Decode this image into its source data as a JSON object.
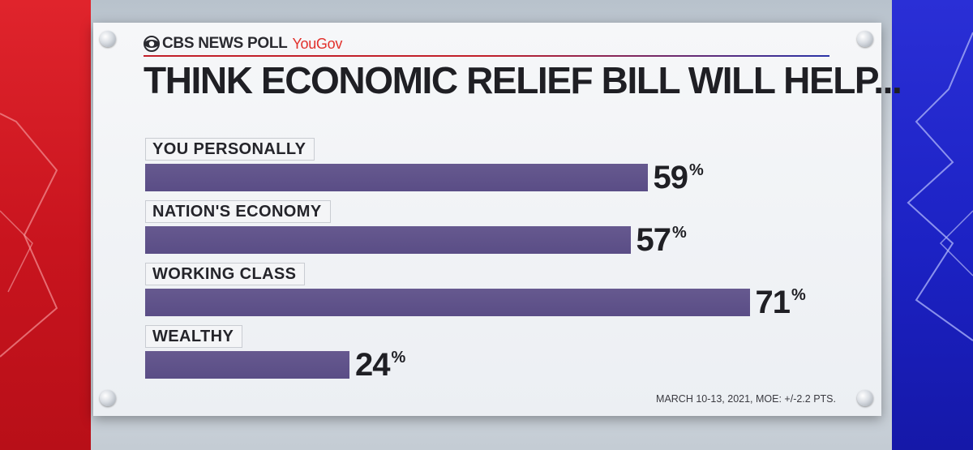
{
  "brand": {
    "network": "CBS NEWS POLL",
    "partner": "YouGov",
    "accent_red": "#e2312c",
    "accent_blue": "#2a34a8"
  },
  "title": "THINK ECONOMIC RELIEF BILL WILL HELP...",
  "footnote": "MARCH 10-13, 2021, MOE: +/-2.2 PTS.",
  "colors": {
    "bar": "#5e5189",
    "background_left": "#d81c25",
    "background_right": "#2227cc"
  },
  "chart_data": {
    "type": "bar",
    "orientation": "horizontal",
    "title": "THINK ECONOMIC RELIEF BILL WILL HELP...",
    "categories": [
      "YOU PERSONALLY",
      "NATION'S ECONOMY",
      "WORKING CLASS",
      "WEALTHY"
    ],
    "values": [
      59,
      57,
      71,
      24
    ],
    "value_suffix": "%",
    "xlim": [
      0,
      100
    ],
    "grid": false,
    "legend": "none"
  }
}
